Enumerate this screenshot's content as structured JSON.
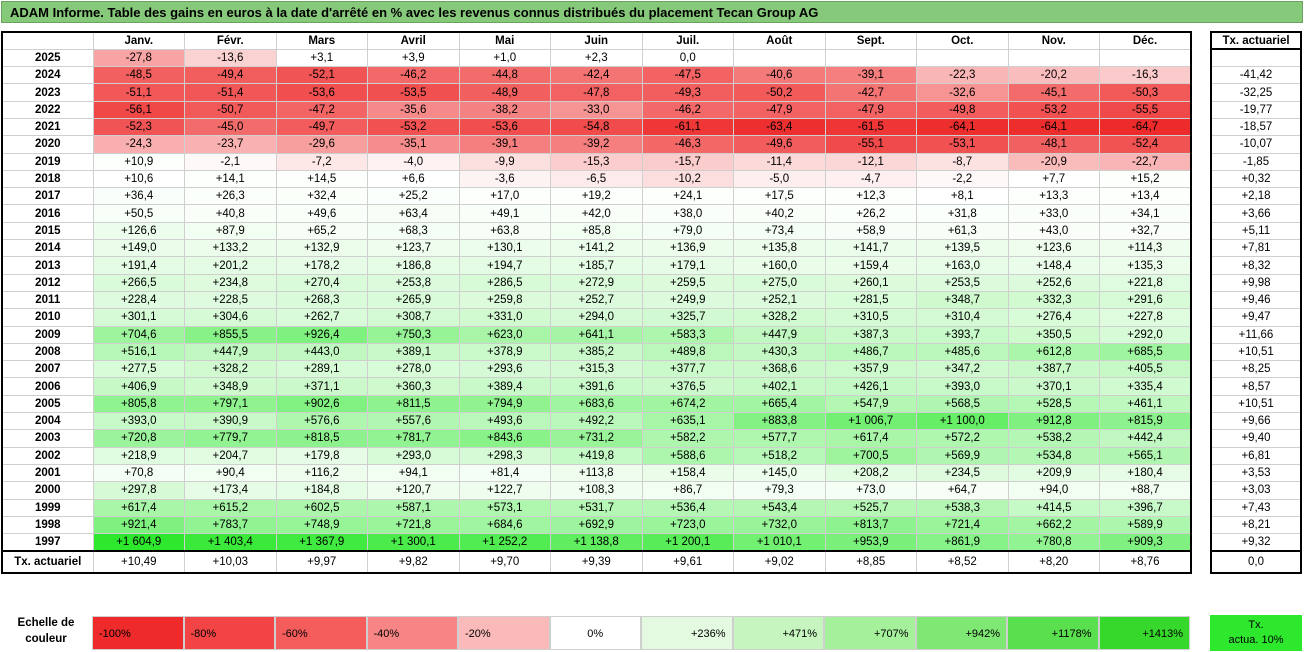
{
  "title": "ADAM Informe. Table des gains en euros à la date d'arrêté en % avec les revenus connus distribués du placement Tecan Group AG",
  "months": [
    "Janv.",
    "Févr.",
    "Mars",
    "Avril",
    "Mai",
    "Juin",
    "Juil.",
    "Août",
    "Sept.",
    "Oct.",
    "Nov.",
    "Déc."
  ],
  "rate_header": "Tx. actuariel",
  "footer_label": "Tx. actuariel",
  "rows": [
    {
      "year": "2025",
      "values": [
        "-27,8",
        "-13,6",
        "+3,1",
        "+3,9",
        "+1,0",
        "+2,3",
        "0,0",
        "",
        "",
        "",
        "",
        ""
      ],
      "rate": ""
    },
    {
      "year": "2024",
      "values": [
        "-48,5",
        "-49,4",
        "-52,1",
        "-46,2",
        "-44,8",
        "-42,4",
        "-47,5",
        "-40,6",
        "-39,1",
        "-22,3",
        "-20,2",
        "-16,3"
      ],
      "rate": "-41,42"
    },
    {
      "year": "2023",
      "values": [
        "-51,1",
        "-51,4",
        "-53,6",
        "-53,5",
        "-48,9",
        "-47,8",
        "-49,3",
        "-50,2",
        "-42,7",
        "-32,6",
        "-45,1",
        "-50,3"
      ],
      "rate": "-32,25"
    },
    {
      "year": "2022",
      "values": [
        "-56,1",
        "-50,7",
        "-47,2",
        "-35,6",
        "-38,2",
        "-33,0",
        "-46,2",
        "-47,9",
        "-47,9",
        "-49,8",
        "-53,2",
        "-55,5"
      ],
      "rate": "-19,77"
    },
    {
      "year": "2021",
      "values": [
        "-52,3",
        "-45,0",
        "-49,7",
        "-53,2",
        "-53,6",
        "-54,8",
        "-61,1",
        "-63,4",
        "-61,5",
        "-64,1",
        "-64,1",
        "-64,7"
      ],
      "rate": "-18,57"
    },
    {
      "year": "2020",
      "values": [
        "-24,3",
        "-23,7",
        "-29,6",
        "-35,1",
        "-39,1",
        "-39,2",
        "-46,3",
        "-49,6",
        "-55,1",
        "-53,1",
        "-48,1",
        "-52,4"
      ],
      "rate": "-10,07"
    },
    {
      "year": "2019",
      "values": [
        "+10,9",
        "-2,1",
        "-7,2",
        "-4,0",
        "-9,9",
        "-15,3",
        "-15,7",
        "-11,4",
        "-12,1",
        "-8,7",
        "-20,9",
        "-22,7"
      ],
      "rate": "-1,85"
    },
    {
      "year": "2018",
      "values": [
        "+10,6",
        "+14,1",
        "+14,5",
        "+6,6",
        "-3,6",
        "-6,5",
        "-10,2",
        "-5,0",
        "-4,7",
        "-2,2",
        "+7,7",
        "+15,2"
      ],
      "rate": "+0,32"
    },
    {
      "year": "2017",
      "values": [
        "+36,4",
        "+26,3",
        "+32,4",
        "+25,2",
        "+17,0",
        "+19,2",
        "+24,1",
        "+17,5",
        "+12,3",
        "+8,1",
        "+13,3",
        "+13,4"
      ],
      "rate": "+2,18"
    },
    {
      "year": "2016",
      "values": [
        "+50,5",
        "+40,8",
        "+49,6",
        "+63,4",
        "+49,1",
        "+42,0",
        "+38,0",
        "+40,2",
        "+26,2",
        "+31,8",
        "+33,0",
        "+34,1"
      ],
      "rate": "+3,66"
    },
    {
      "year": "2015",
      "values": [
        "+126,6",
        "+87,9",
        "+65,2",
        "+68,3",
        "+63,8",
        "+85,8",
        "+79,0",
        "+73,4",
        "+58,9",
        "+61,3",
        "+43,0",
        "+32,7"
      ],
      "rate": "+5,11"
    },
    {
      "year": "2014",
      "values": [
        "+149,0",
        "+133,2",
        "+132,9",
        "+123,7",
        "+130,1",
        "+141,2",
        "+136,9",
        "+135,8",
        "+141,7",
        "+139,5",
        "+123,6",
        "+114,3"
      ],
      "rate": "+7,81"
    },
    {
      "year": "2013",
      "values": [
        "+191,4",
        "+201,2",
        "+178,2",
        "+186,8",
        "+194,7",
        "+185,7",
        "+179,1",
        "+160,0",
        "+159,4",
        "+163,0",
        "+148,4",
        "+135,3"
      ],
      "rate": "+8,32"
    },
    {
      "year": "2012",
      "values": [
        "+266,5",
        "+234,8",
        "+270,4",
        "+253,8",
        "+286,5",
        "+272,9",
        "+259,5",
        "+275,0",
        "+260,1",
        "+253,5",
        "+252,6",
        "+221,8"
      ],
      "rate": "+9,98"
    },
    {
      "year": "2011",
      "values": [
        "+228,4",
        "+228,5",
        "+268,3",
        "+265,9",
        "+259,8",
        "+252,7",
        "+249,9",
        "+252,1",
        "+281,5",
        "+348,7",
        "+332,3",
        "+291,6"
      ],
      "rate": "+9,46"
    },
    {
      "year": "2010",
      "values": [
        "+301,1",
        "+304,6",
        "+262,7",
        "+308,7",
        "+331,0",
        "+294,0",
        "+325,7",
        "+328,2",
        "+310,5",
        "+310,4",
        "+276,4",
        "+227,8"
      ],
      "rate": "+9,47"
    },
    {
      "year": "2009",
      "values": [
        "+704,6",
        "+855,5",
        "+926,4",
        "+750,3",
        "+623,0",
        "+641,1",
        "+583,3",
        "+447,9",
        "+387,3",
        "+393,7",
        "+350,5",
        "+292,0"
      ],
      "rate": "+11,66"
    },
    {
      "year": "2008",
      "values": [
        "+516,1",
        "+447,9",
        "+443,0",
        "+389,1",
        "+378,9",
        "+385,2",
        "+489,8",
        "+430,3",
        "+486,7",
        "+485,6",
        "+612,8",
        "+685,5"
      ],
      "rate": "+10,51"
    },
    {
      "year": "2007",
      "values": [
        "+277,5",
        "+328,2",
        "+289,1",
        "+278,0",
        "+293,6",
        "+315,3",
        "+377,7",
        "+368,6",
        "+357,9",
        "+347,2",
        "+387,7",
        "+405,5"
      ],
      "rate": "+8,25"
    },
    {
      "year": "2006",
      "values": [
        "+406,9",
        "+348,9",
        "+371,1",
        "+360,3",
        "+389,4",
        "+391,6",
        "+376,5",
        "+402,1",
        "+426,1",
        "+393,0",
        "+370,1",
        "+335,4"
      ],
      "rate": "+8,57"
    },
    {
      "year": "2005",
      "values": [
        "+805,8",
        "+797,1",
        "+902,6",
        "+811,5",
        "+794,9",
        "+683,6",
        "+674,2",
        "+665,4",
        "+547,9",
        "+568,5",
        "+528,5",
        "+461,1"
      ],
      "rate": "+10,51"
    },
    {
      "year": "2004",
      "values": [
        "+393,0",
        "+390,9",
        "+576,6",
        "+557,6",
        "+493,6",
        "+492,2",
        "+635,1",
        "+883,8",
        "+1 006,7",
        "+1 100,0",
        "+912,8",
        "+815,9"
      ],
      "rate": "+9,66"
    },
    {
      "year": "2003",
      "values": [
        "+720,8",
        "+779,7",
        "+818,5",
        "+781,7",
        "+843,6",
        "+731,2",
        "+582,2",
        "+577,7",
        "+617,4",
        "+572,2",
        "+538,2",
        "+442,4"
      ],
      "rate": "+9,40"
    },
    {
      "year": "2002",
      "values": [
        "+218,9",
        "+204,7",
        "+179,8",
        "+293,0",
        "+298,3",
        "+419,8",
        "+588,6",
        "+518,2",
        "+700,5",
        "+569,9",
        "+534,8",
        "+565,1"
      ],
      "rate": "+6,81"
    },
    {
      "year": "2001",
      "values": [
        "+70,8",
        "+90,4",
        "+116,2",
        "+94,1",
        "+81,4",
        "+113,8",
        "+158,4",
        "+145,0",
        "+208,2",
        "+234,5",
        "+209,9",
        "+180,4"
      ],
      "rate": "+3,53"
    },
    {
      "year": "2000",
      "values": [
        "+297,8",
        "+173,4",
        "+184,8",
        "+120,7",
        "+122,7",
        "+108,3",
        "+86,7",
        "+79,3",
        "+73,0",
        "+64,7",
        "+94,0",
        "+88,7"
      ],
      "rate": "+3,03"
    },
    {
      "year": "1999",
      "values": [
        "+617,4",
        "+615,2",
        "+602,5",
        "+587,1",
        "+573,1",
        "+531,7",
        "+536,4",
        "+543,4",
        "+525,7",
        "+538,3",
        "+414,5",
        "+396,7"
      ],
      "rate": "+7,43"
    },
    {
      "year": "1998",
      "values": [
        "+921,4",
        "+783,7",
        "+748,9",
        "+721,8",
        "+684,6",
        "+692,9",
        "+723,0",
        "+732,0",
        "+813,7",
        "+721,4",
        "+662,2",
        "+589,9"
      ],
      "rate": "+8,21"
    },
    {
      "year": "1997",
      "values": [
        "+1 604,9",
        "+1 403,4",
        "+1 367,9",
        "+1 300,1",
        "+1 252,2",
        "+1 138,8",
        "+1 200,1",
        "+1 010,1",
        "+953,9",
        "+861,9",
        "+780,8",
        "+909,3"
      ],
      "rate": "+9,32"
    }
  ],
  "footer_values": [
    "+10,49",
    "+10,03",
    "+9,97",
    "+9,82",
    "+9,70",
    "+9,39",
    "+9,61",
    "+9,02",
    "+8,85",
    "+8,52",
    "+8,20",
    "+8,76"
  ],
  "footer_rate": "0,0",
  "legend": {
    "label": "Echelle de couleur",
    "items": [
      {
        "text": "-100%",
        "color": "#ee2a2a"
      },
      {
        "text": "-80%",
        "color": "#f24444"
      },
      {
        "text": "-60%",
        "color": "#f55d5d"
      },
      {
        "text": "-40%",
        "color": "#f88585"
      },
      {
        "text": "-20%",
        "color": "#fbbaba"
      },
      {
        "text": "0%",
        "color": "#ffffff"
      },
      {
        "text": "+236%",
        "color": "#e3fae0"
      },
      {
        "text": "+471%",
        "color": "#c6f5c0"
      },
      {
        "text": "+707%",
        "color": "#a5f09b"
      },
      {
        "text": "+942%",
        "color": "#7fe874"
      },
      {
        "text": "+1178%",
        "color": "#5ae04e"
      },
      {
        "text": "+1413%",
        "color": "#36d92b"
      }
    ],
    "end_line1": "Tx.",
    "end_line2": "actua. 10%",
    "end_color": "#2ee82e"
  }
}
